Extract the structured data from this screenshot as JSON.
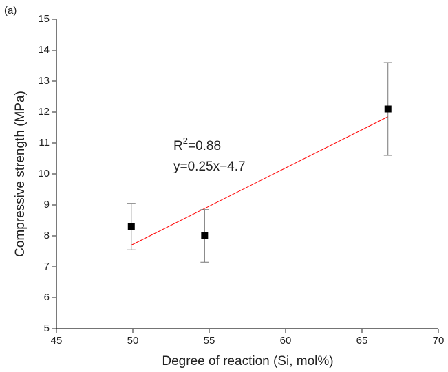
{
  "chart_data": {
    "type": "scatter",
    "label": "(a)",
    "x_label": "Degree of reaction (Si, mol%)",
    "y_label": "Compressive strength (MPa)",
    "points": {
      "x": [
        49.9,
        54.7,
        66.7
      ],
      "values": [
        8.3,
        8.0,
        12.1
      ],
      "errors": [
        0.75,
        0.85,
        1.5
      ],
      "color": "#000000"
    },
    "fit": {
      "x": [
        49.9,
        66.7
      ],
      "values": [
        7.7,
        11.85
      ],
      "color": "#ff0000"
    },
    "annotation": {
      "r2": [
        "R",
        "2",
        "=0.88"
      ],
      "equation": "y=0.25x−4.7"
    },
    "xlim": [
      45,
      70
    ],
    "ylim": [
      5,
      15
    ],
    "xticks": [
      45,
      50,
      55,
      60,
      65,
      70
    ],
    "yticks": [
      5,
      6,
      7,
      8,
      9,
      10,
      11,
      12,
      13,
      14,
      15
    ]
  }
}
